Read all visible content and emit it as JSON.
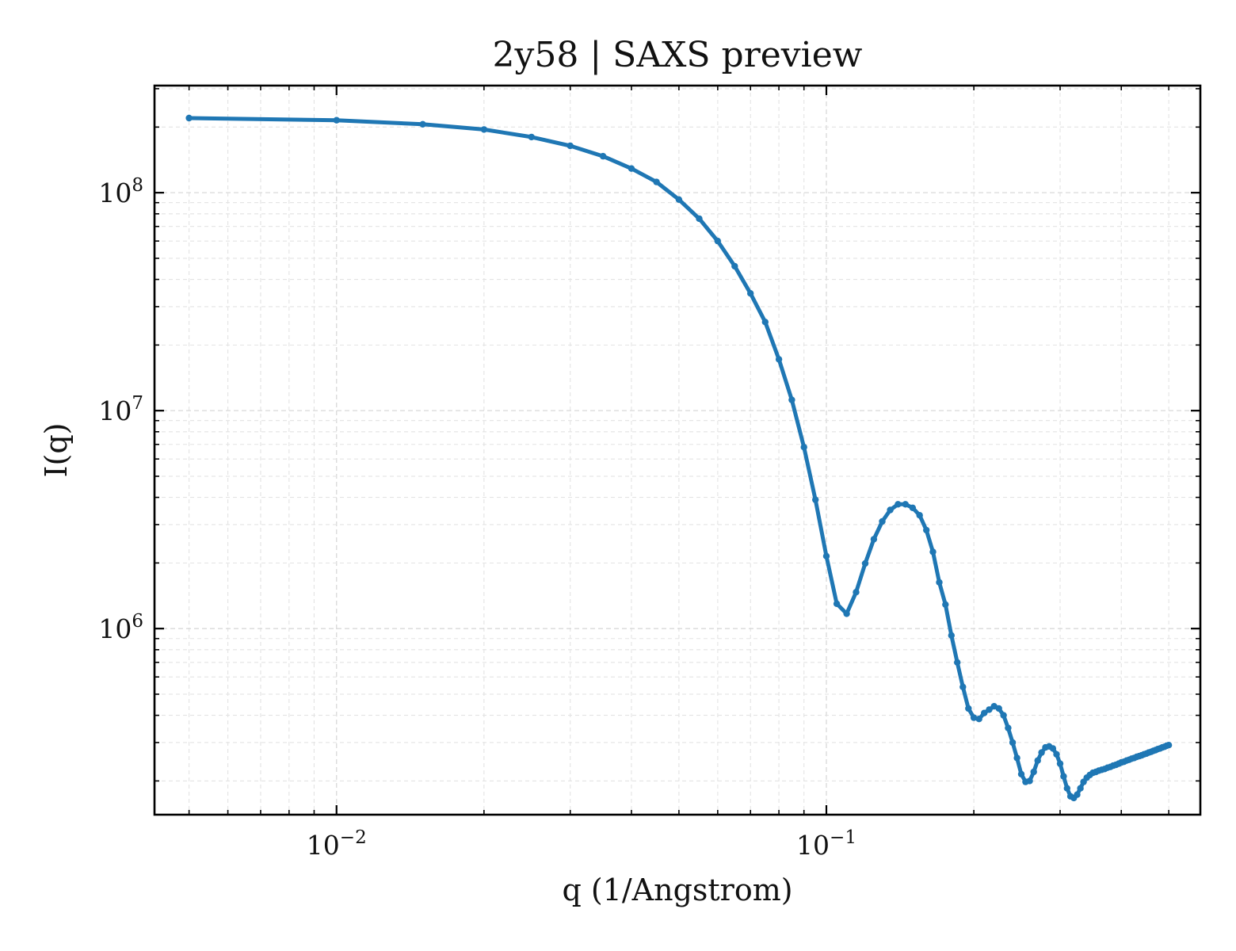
{
  "chart_data": {
    "type": "line",
    "title": "2y58 | SAXS preview",
    "xlabel": "q (1/Angstrom)",
    "ylabel": "I(q)",
    "xscale": "log",
    "yscale": "log",
    "xlim": [
      0.00425,
      0.58
    ],
    "ylim": [
      140000,
      310000000
    ],
    "grid": true,
    "legend": "none",
    "color": "#1f77b4",
    "xticks": [
      {
        "value": 0.01,
        "base": "10",
        "exp": "−2"
      },
      {
        "value": 0.1,
        "base": "10",
        "exp": "−1"
      }
    ],
    "yticks": [
      {
        "value": 1000000,
        "base": "10",
        "exp": "6"
      },
      {
        "value": 10000000,
        "base": "10",
        "exp": "7"
      },
      {
        "value": 100000000,
        "base": "10",
        "exp": "8"
      }
    ],
    "series": [
      {
        "x": [
          0.005,
          0.01,
          0.015,
          0.02,
          0.025,
          0.03,
          0.035,
          0.04,
          0.045,
          0.05,
          0.055,
          0.06,
          0.065,
          0.07,
          0.075,
          0.08,
          0.085,
          0.09,
          0.095,
          0.1,
          0.105,
          0.11,
          0.115,
          0.12,
          0.125,
          0.13,
          0.135,
          0.14,
          0.145,
          0.15,
          0.155,
          0.16,
          0.165,
          0.17,
          0.175,
          0.18,
          0.185,
          0.19,
          0.195,
          0.2,
          0.205,
          0.21,
          0.215,
          0.22,
          0.225,
          0.23,
          0.235,
          0.24,
          0.245,
          0.25,
          0.255,
          0.26,
          0.265,
          0.27,
          0.275,
          0.28,
          0.285,
          0.29,
          0.295,
          0.3,
          0.305,
          0.31,
          0.315,
          0.32,
          0.325,
          0.33,
          0.335,
          0.34,
          0.345,
          0.35,
          0.355,
          0.36,
          0.365,
          0.37,
          0.375,
          0.38,
          0.385,
          0.39,
          0.395,
          0.4,
          0.405,
          0.41,
          0.415,
          0.42,
          0.425,
          0.43,
          0.435,
          0.44,
          0.445,
          0.45,
          0.455,
          0.46,
          0.465,
          0.47,
          0.475,
          0.48,
          0.485,
          0.49,
          0.495,
          0.5
        ],
        "y": [
          220000000,
          215000000,
          206000000,
          195000000,
          180000000,
          164000000,
          147000000,
          129000000,
          112000000,
          93000000,
          76000000,
          60000000,
          46000000,
          34500000,
          25500000,
          17200000,
          11200000,
          6800000,
          3900000,
          2150000,
          1300000,
          1170000,
          1470000,
          1990000,
          2570000,
          3100000,
          3500000,
          3720000,
          3720000,
          3580000,
          3310000,
          2830000,
          2250000,
          1630000,
          1290000,
          930000,
          700000,
          540000,
          430000,
          390000,
          385000,
          410000,
          425000,
          440000,
          430000,
          400000,
          350000,
          300000,
          255000,
          215000,
          198000,
          200000,
          220000,
          248000,
          270000,
          285000,
          288000,
          282000,
          265000,
          240000,
          210000,
          185000,
          170000,
          167000,
          173000,
          185000,
          198000,
          207000,
          213000,
          218000,
          220000,
          223000,
          225000,
          227000,
          230000,
          232000,
          235000,
          237000,
          240000,
          243000,
          245000,
          248000,
          250000,
          253000,
          255000,
          258000,
          260000,
          262000,
          265000,
          267000,
          270000,
          272000,
          275000,
          277000,
          280000,
          282000,
          285000,
          287000,
          290000,
          292000
        ]
      }
    ]
  }
}
